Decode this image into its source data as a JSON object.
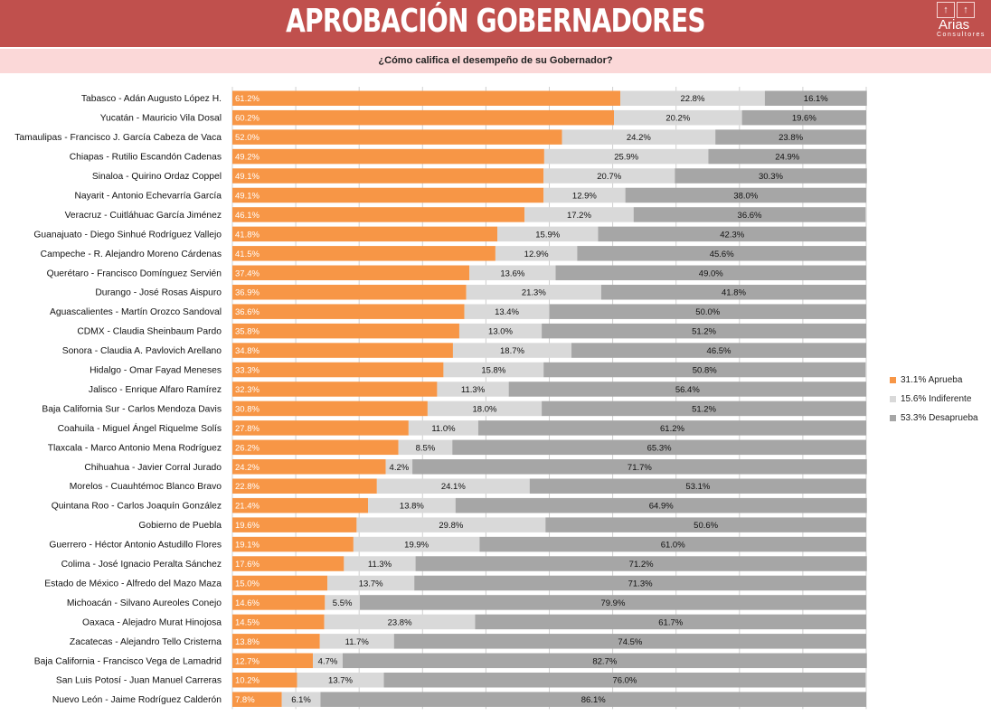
{
  "header": {
    "title": "APROBACIÓN GOBERNADORES",
    "subtitle": "¿Cómo califica el desempeño de su Gobernador?"
  },
  "logo": {
    "icon": "arrow-up-icon",
    "name": "Arias",
    "sub": "Consultores"
  },
  "colors": {
    "header": "#c0504d",
    "subbar": "#fbd8d8",
    "aprueba": "#f79646",
    "indiferente": "#d9d9d9",
    "desaprueba": "#a6a6a6"
  },
  "legend": [
    {
      "label": "31.1% Aprueba",
      "color": "#f79646"
    },
    {
      "label": "15.6% Indiferente",
      "color": "#d9d9d9"
    },
    {
      "label": "53.3% Desaprueba",
      "color": "#a6a6a6"
    }
  ],
  "chart_data": {
    "type": "bar",
    "stacked": true,
    "orientation": "horizontal",
    "percent_100": true,
    "xlim": [
      0,
      100
    ],
    "grid": true,
    "legend_position": "right",
    "categories": [
      "Tabasco - Adán Augusto López H.",
      "Yucatán  - Mauricio Vila Dosal",
      "Tamaulipas - Francisco J. García Cabeza de Vaca",
      "Chiapas - Rutilio Escandón Cadenas",
      "Sinaloa - Quirino Ordaz Coppel",
      "Nayarit - Antonio Echevarría García",
      "Veracruz - Cuitláhuac García Jiménez",
      "Guanajuato - Diego Sinhué Rodríguez Vallejo",
      "Campeche - R. Alejandro Moreno Cárdenas",
      "Querétaro - Francisco Domínguez Servién",
      "Durango - José Rosas Aispuro",
      "Aguascalientes - Martín Orozco Sandoval",
      "CDMX - Claudia Sheinbaum Pardo",
      "Sonora - Claudia A. Pavlovich Arellano",
      "Hidalgo - Omar Fayad Meneses",
      "Jalisco - Enrique Alfaro Ramírez",
      "Baja California Sur - Carlos Mendoza Davis",
      "Coahuila - Miguel Ángel Riquelme Solís",
      "Tlaxcala - Marco Antonio Mena Rodríguez",
      "Chihuahua - Javier Corral Jurado",
      "Morelos - Cuauhtémoc Blanco Bravo",
      "Quintana Roo - Carlos Joaquín González",
      "Gobierno de Puebla",
      "Guerrero - Héctor Antonio Astudillo Flores",
      "Colima - José Ignacio Peralta Sánchez",
      "Estado de México - Alfredo del Mazo Maza",
      "Michoacán - Silvano Aureoles Conejo",
      "Oaxaca  - Alejadro Murat Hinojosa",
      "Zacatecas - Alejandro Tello Cristerna",
      "Baja California - Francisco Vega de Lamadrid",
      "San Luis Potosí - Juan Manuel Carreras",
      "Nuevo León  - Jaime Rodríguez Calderón"
    ],
    "series": [
      {
        "name": "Aprueba",
        "values": [
          61.2,
          60.2,
          52.0,
          49.2,
          49.1,
          49.1,
          46.1,
          41.8,
          41.5,
          37.4,
          36.9,
          36.6,
          35.8,
          34.8,
          33.3,
          32.3,
          30.8,
          27.8,
          26.2,
          24.2,
          22.8,
          21.4,
          19.6,
          19.1,
          17.6,
          15.0,
          14.6,
          14.5,
          13.8,
          12.7,
          10.2,
          7.8
        ],
        "labels": [
          "61.2%",
          "60.2%",
          "52.0%",
          "49.2%",
          "49.1%",
          "49.1%",
          "46.1%",
          "41.8%",
          "41.5%",
          "37.4%",
          "36.9%",
          "36.6%",
          "35.8%",
          "34.8%",
          "33.3%",
          "32.3%",
          "30.8%",
          "27.8%",
          "26.2%",
          "24.2%",
          "22.8%",
          "21.4%",
          "19.6%",
          "19.1%",
          "17.6%",
          "15.0%",
          "14.6%",
          "14.5%",
          "13.8%",
          "12.7%",
          "10.2%",
          "7.8%"
        ]
      },
      {
        "name": "Indiferente",
        "values": [
          22.8,
          20.2,
          24.2,
          25.9,
          20.7,
          12.9,
          17.2,
          15.9,
          12.9,
          13.6,
          21.3,
          13.4,
          13.0,
          18.7,
          15.8,
          11.3,
          18.0,
          11.0,
          8.5,
          4.2,
          24.1,
          13.8,
          29.8,
          19.9,
          11.3,
          13.7,
          5.5,
          23.8,
          11.7,
          4.7,
          13.7,
          6.1
        ],
        "labels": [
          "22.8%",
          "20.2%",
          "24.2%",
          "25.9%",
          "20.7%",
          "12.9%",
          "17.2%",
          "15.9%",
          "12.9%",
          "13.6%",
          "21.3%",
          "13.4%",
          "13.0%",
          "18.7%",
          "15.8%",
          "11.3%",
          "18.0%",
          "11.0%",
          "8.5%",
          "4.2%",
          "24.1%",
          "13.8%",
          "29.8%",
          "19.9%",
          "11.3%",
          "13.7%",
          "5.5%",
          "23.8%",
          "11.7%",
          "4.7%",
          "13.7%",
          "6.1%"
        ]
      },
      {
        "name": "Desaprueba",
        "values": [
          16.1,
          19.6,
          23.8,
          24.9,
          30.3,
          38.0,
          36.6,
          42.3,
          45.6,
          49.0,
          41.8,
          50.0,
          51.2,
          46.5,
          50.8,
          56.4,
          51.2,
          61.2,
          65.3,
          71.7,
          53.1,
          64.9,
          50.6,
          61.0,
          71.2,
          71.3,
          79.9,
          61.7,
          74.5,
          82.7,
          76.0,
          86.1
        ],
        "labels": [
          "16.1%",
          "19.6%",
          "23.8%",
          "24.9%",
          "30.3%",
          "38.0%",
          "36.6%",
          "42.3%",
          "45.6%",
          "49.0%",
          "41.8%",
          "50.0%",
          "51.2%",
          "46.5%",
          "50.8%",
          "56.4%",
          "51.2%",
          "61.2%",
          "65.3%",
          "71.7%",
          "53.1%",
          "64.9%",
          "50.6%",
          "61.0%",
          "71.2%",
          "71.3%",
          "79.9%",
          "61.7%",
          "74.5%",
          "82.7%",
          "76.0%",
          "86.1%"
        ]
      }
    ]
  }
}
